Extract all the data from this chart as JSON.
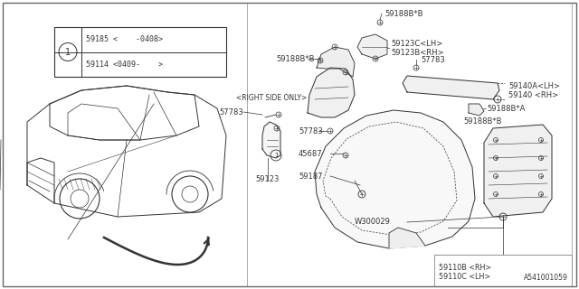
{
  "bg_color": "#FFFFFF",
  "line_color": "#333333",
  "footnote": "A541001059",
  "labels": {
    "59110B": "59110B <RH>",
    "59110C": "59110C <LH>",
    "W300029": "W300029",
    "59187": "59187",
    "45687": "45687",
    "57783_mid": "57783",
    "59188B_B_top": "59188B*B",
    "59188B_A": "59188B*A",
    "59140_RH": "59140 <RH>",
    "59140A_LH": "59140A<LH>",
    "59188B_B_bot": "59188B*B",
    "57783_bot": "57783",
    "59123B_RH": "59123B<RH>",
    "59123C_LH": "59123C<LH>",
    "59188B_B_btm": "59188B*B",
    "59123": "59123",
    "57783_left": "57783",
    "right_side_only": "<RIGHT SIDE ONLY>",
    "59185": "59185 <    -0408>",
    "59114": "59114 <0409-    >"
  }
}
